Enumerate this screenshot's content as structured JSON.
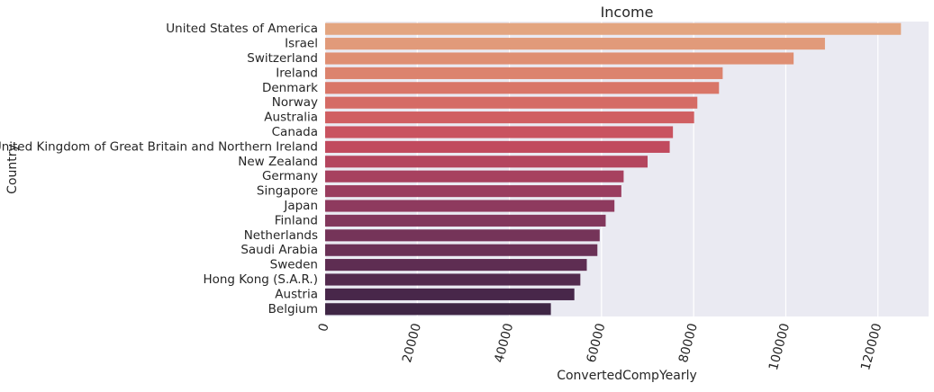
{
  "chart_data": {
    "type": "bar",
    "orientation": "horizontal",
    "title": "Income",
    "xlabel": "ConvertedCompYearly",
    "ylabel": "Country",
    "xlim": [
      0,
      131000
    ],
    "xticks": [
      0,
      20000,
      40000,
      60000,
      80000,
      100000,
      120000
    ],
    "xtick_labels": [
      "0",
      "20000",
      "40000",
      "60000",
      "80000",
      "100000",
      "120000"
    ],
    "grid": true,
    "background": "#eaeaf2",
    "grid_color": "#ffffff",
    "palette": "rocket (light to dark)",
    "categories": [
      "United States of America",
      "Israel",
      "Switzerland",
      "Ireland",
      "Denmark",
      "Norway",
      "Australia",
      "Canada",
      "United Kingdom of Great Britain and Northern Ireland",
      "New Zealand",
      "Germany",
      "Singapore",
      "Japan",
      "Finland",
      "Netherlands",
      "Saudi Arabia",
      "Sweden",
      "Hong Kong (S.A.R.)",
      "Austria",
      "Belgium"
    ],
    "values": [
      125000,
      108500,
      101700,
      86300,
      85500,
      80800,
      80100,
      75500,
      74800,
      70000,
      64800,
      64300,
      62800,
      60900,
      59600,
      59100,
      56800,
      55400,
      54100,
      49000
    ],
    "colors": [
      "#e3a580",
      "#e19a7a",
      "#df8f73",
      "#dc836e",
      "#d97668",
      "#d56b65",
      "#d05f62",
      "#c95360",
      "#c14a5e",
      "#b4455e",
      "#a7415f",
      "#9a3d5f",
      "#8e3a5e",
      "#82375c",
      "#753459",
      "#6a3156",
      "#5e2d52",
      "#532a4e",
      "#48274a",
      "#3f2645"
    ]
  }
}
